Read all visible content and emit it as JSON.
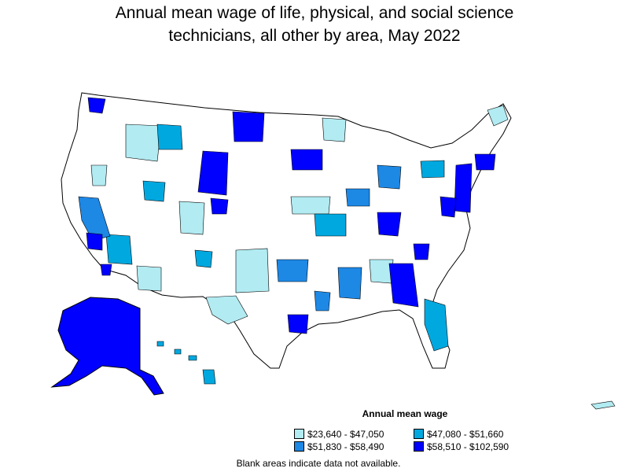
{
  "title": {
    "line1": "Annual mean wage of life, physical, and social science",
    "line2": "technicians, all other by area, May 2022"
  },
  "legend": {
    "title": "Annual mean wage",
    "items": [
      {
        "label": "$23,640 - $47,050",
        "color": "#b2ebf2"
      },
      {
        "label": "$47,080 - $51,660",
        "color": "#00a8e0"
      },
      {
        "label": "$51,830 - $58,490",
        "color": "#1e88e5"
      },
      {
        "label": "$58,510 - $102,590",
        "color": "#0000ff"
      }
    ]
  },
  "note": "Blank areas indicate data not available.",
  "colors": {
    "border": "#000000",
    "no_data": "#ffffff"
  }
}
